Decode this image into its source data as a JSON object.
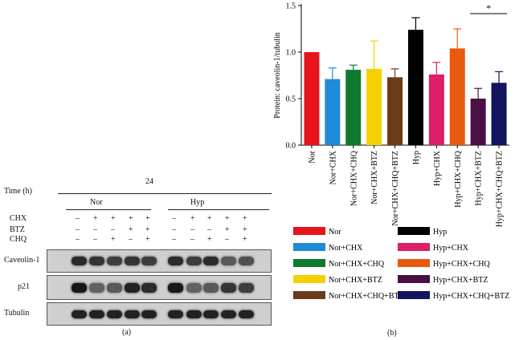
{
  "panel_a": {
    "time_label": "Time (h)",
    "time_value": "24",
    "group_nor": "Nor",
    "group_hyp": "Hyp",
    "treatments": [
      {
        "name": "CHX",
        "signs": [
          "–",
          "+",
          "+",
          "+",
          "+",
          "–",
          "+",
          "+",
          "+",
          "+"
        ]
      },
      {
        "name": "BTZ",
        "signs": [
          "–",
          "–",
          "–",
          "+",
          "+",
          "–",
          "–",
          "–",
          "+",
          "+"
        ]
      },
      {
        "name": "CHQ",
        "signs": [
          "–",
          "–",
          "+",
          "–",
          "+",
          "–",
          "–",
          "+",
          "–",
          "+"
        ]
      }
    ],
    "blots": [
      {
        "name": "Caveolin-1",
        "intensity": [
          0.85,
          0.8,
          0.75,
          0.8,
          0.75,
          0.85,
          0.75,
          0.85,
          0.6,
          0.65
        ]
      },
      {
        "name": "p21",
        "intensity": [
          0.95,
          0.55,
          0.6,
          0.9,
          0.85,
          0.95,
          0.55,
          0.6,
          0.8,
          0.75
        ]
      },
      {
        "name": "Tubulin",
        "intensity": [
          0.9,
          0.9,
          0.9,
          0.9,
          0.9,
          0.9,
          0.9,
          0.9,
          0.9,
          0.9
        ]
      }
    ],
    "caption": "(a)"
  },
  "panel_b": {
    "caption": "(b)",
    "significance": "*"
  },
  "chart_data": {
    "type": "bar",
    "ylabel": "Protein: caveolin-1/tubulin",
    "ylim": [
      0,
      1.5
    ],
    "yticks": [
      "0.0",
      "0.5",
      "1.0",
      "1.5"
    ],
    "categories": [
      "Nor",
      "Nor+CHX",
      "Nor+CHX+CHQ",
      "Nor+CHX+BTZ",
      "Nor+CHX+CHQ+BTZ",
      "Hyp",
      "Hyp+CHX",
      "Hyp+CHX+CHQ",
      "Hyp+CHX+BTZ",
      "Hyp+CHX+CHQ+BTZ"
    ],
    "values": [
      1.0,
      0.71,
      0.81,
      0.82,
      0.73,
      1.24,
      0.76,
      1.04,
      0.5,
      0.67
    ],
    "errors": [
      0.0,
      0.12,
      0.05,
      0.3,
      0.09,
      0.13,
      0.13,
      0.21,
      0.11,
      0.12
    ],
    "colors": [
      "#e8141b",
      "#1f8ad6",
      "#0f7a2e",
      "#f5d000",
      "#6b3b1a",
      "#000000",
      "#dc1f66",
      "#e85a10",
      "#4a0f45",
      "#10155e"
    ],
    "significance_pair": [
      8,
      9
    ],
    "legend_placement": "bottom"
  }
}
